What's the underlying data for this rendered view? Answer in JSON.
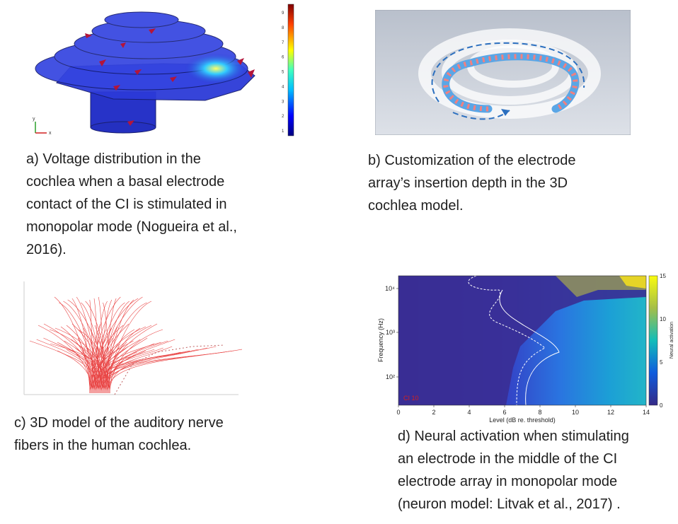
{
  "panel_a": {
    "colorbar_ticks": [
      "9",
      "8",
      "7",
      "6",
      "5",
      "4",
      "3",
      "2",
      "1"
    ],
    "axis_y": "y",
    "axis_x": "x",
    "caption_lines": [
      "a) Voltage distribution in the",
      "cochlea when a basal electrode",
      "contact of the CI is stimulated in",
      "monopolar mode (Nogueira et al.,",
      "2016)."
    ]
  },
  "panel_b": {
    "caption_lines": [
      "b) Customization of the electrode",
      "array’s insertion depth in the 3D",
      "cochlea model."
    ]
  },
  "panel_c": {
    "caption_lines": [
      "c) 3D model of the auditory nerve",
      "fibers in the human cochlea."
    ]
  },
  "panel_d": {
    "chart_data": {
      "type": "heatmap",
      "xlabel": "Level (dB re. threshold)",
      "ylabel": "Frequency (Hz)",
      "x_ticks": [
        0,
        2,
        4,
        6,
        8,
        10,
        12,
        14
      ],
      "xlim": [
        0,
        14
      ],
      "y_scale": "log",
      "y_ticks": [
        "10²",
        "10³",
        "10⁴"
      ],
      "colorbar_label": "Neural activation",
      "colorbar_ticks": [
        0,
        5,
        10,
        15
      ],
      "clim": [
        0,
        15
      ],
      "annotation": "CI 10"
    },
    "caption_lines": [
      "d) Neural activation when stimulating",
      "an electrode in the middle of the CI",
      "electrode array in monopolar mode",
      "(neuron model: Litvak et al., 2017) ."
    ]
  }
}
